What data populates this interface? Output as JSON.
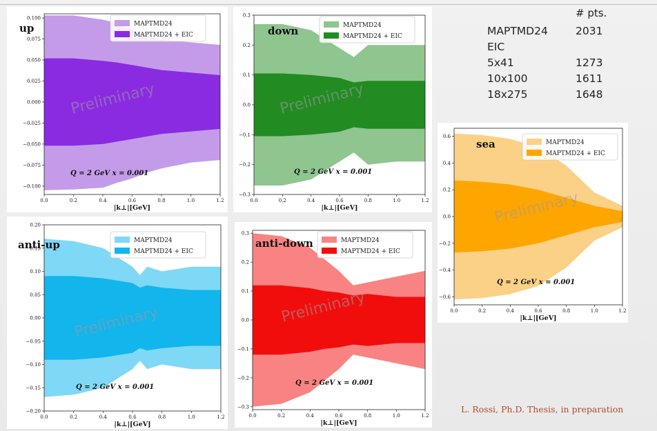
{
  "stats": {
    "header": "# pts.",
    "rows": [
      {
        "label": "MAPTMD24",
        "value": "2031"
      },
      {
        "label": "EIC",
        "value": ""
      },
      {
        "label": "5x41",
        "value": "1273"
      },
      {
        "label": "10x100",
        "value": "1611"
      },
      {
        "label": "18x275",
        "value": "1648"
      }
    ]
  },
  "credit": "L. Rossi, Ph.D. Thesis, in preparation",
  "chart_data": [
    {
      "type": "area",
      "title": "up",
      "xlabel": "|k⊥|[GeV]",
      "xlim": [
        0,
        1.2
      ],
      "ylim": [
        -0.11,
        0.105
      ],
      "xticks": [
        "0.0",
        "0.2",
        "0.4",
        "0.6",
        "0.8",
        "1.0",
        "1.2"
      ],
      "yticks": [
        "−0.100",
        "−0.075",
        "−0.050",
        "−0.025",
        "0.000",
        "0.025",
        "0.050",
        "0.075",
        "0.100"
      ],
      "legend": [
        "MAPTMD24",
        "MAPTMD24 + EIC"
      ],
      "colors": [
        "#c49be8",
        "#8a2be2"
      ],
      "note": "Q = 2 GeV   x = 0.001",
      "watermark": "Preliminary",
      "x": [
        0.0,
        0.2,
        0.4,
        0.5,
        0.6,
        0.7,
        0.8,
        1.0,
        1.2
      ],
      "series": [
        {
          "name": "MAPTMD24",
          "upper": [
            0.103,
            0.103,
            0.098,
            0.094,
            0.086,
            0.079,
            0.074,
            0.071,
            0.068
          ],
          "lower": [
            -0.105,
            -0.104,
            -0.102,
            -0.096,
            -0.091,
            -0.084,
            -0.079,
            -0.072,
            -0.069
          ]
        },
        {
          "name": "MAPTMD24 + EIC",
          "upper": [
            0.052,
            0.052,
            0.049,
            0.047,
            0.044,
            0.041,
            0.038,
            0.035,
            0.032
          ],
          "lower": [
            -0.052,
            -0.052,
            -0.05,
            -0.047,
            -0.044,
            -0.041,
            -0.038,
            -0.035,
            -0.032
          ]
        }
      ]
    },
    {
      "type": "area",
      "title": "down",
      "xlabel": "|k⊥|[GeV]",
      "xlim": [
        0,
        1.2
      ],
      "ylim": [
        -0.3,
        0.3
      ],
      "xticks": [
        "0.0",
        "0.2",
        "0.4",
        "0.6",
        "0.8",
        "1.0",
        "1.2"
      ],
      "yticks": [
        "−0.3",
        "−0.2",
        "−0.1",
        "0.0",
        "0.1",
        "0.2",
        "0.3"
      ],
      "legend": [
        "MAPTMD24",
        "MAPTMD24 + EIC"
      ],
      "colors": [
        "#8fc58f",
        "#228b22"
      ],
      "note": "Q = 2 GeV   x = 0.001",
      "watermark": "Preliminary",
      "x": [
        0.0,
        0.2,
        0.4,
        0.5,
        0.6,
        0.7,
        0.8,
        1.0,
        1.2
      ],
      "series": [
        {
          "name": "MAPTMD24",
          "upper": [
            0.27,
            0.27,
            0.25,
            0.22,
            0.19,
            0.16,
            0.2,
            0.2,
            0.2
          ],
          "lower": [
            -0.27,
            -0.27,
            -0.25,
            -0.22,
            -0.19,
            -0.16,
            -0.2,
            -0.19,
            -0.19
          ]
        },
        {
          "name": "MAPTMD24 + EIC",
          "upper": [
            0.105,
            0.105,
            0.1,
            0.095,
            0.09,
            0.075,
            0.08,
            0.08,
            0.08
          ],
          "lower": [
            -0.105,
            -0.105,
            -0.1,
            -0.095,
            -0.09,
            -0.075,
            -0.08,
            -0.08,
            -0.08
          ]
        }
      ]
    },
    {
      "type": "area",
      "title": "anti-up",
      "xlabel": "|k⊥|[GeV]",
      "xlim": [
        0,
        1.2
      ],
      "ylim": [
        -0.2,
        0.2
      ],
      "xticks": [
        "0.0",
        "0.2",
        "0.4",
        "0.6",
        "0.8",
        "1.0",
        "1.2"
      ],
      "yticks": [
        "−0.20",
        "−0.15",
        "−0.10",
        "−0.05",
        "0.00",
        "0.05",
        "0.10",
        "0.15",
        "0.20"
      ],
      "legend": [
        "MAPTMD24",
        "MAPTMD24 + EIC"
      ],
      "colors": [
        "#7fd8f5",
        "#12b5ec"
      ],
      "note": "Q = 2 GeV   x = 0.001",
      "watermark": "Preliminary",
      "x": [
        0.0,
        0.2,
        0.4,
        0.5,
        0.6,
        0.65,
        0.7,
        0.8,
        1.0,
        1.2
      ],
      "series": [
        {
          "name": "MAPTMD24",
          "upper": [
            0.17,
            0.165,
            0.15,
            0.13,
            0.11,
            0.092,
            0.11,
            0.1,
            0.11,
            0.11
          ],
          "lower": [
            -0.17,
            -0.165,
            -0.15,
            -0.13,
            -0.11,
            -0.092,
            -0.11,
            -0.1,
            -0.11,
            -0.11
          ]
        },
        {
          "name": "MAPTMD24 + EIC",
          "upper": [
            0.09,
            0.09,
            0.085,
            0.08,
            0.075,
            0.065,
            0.07,
            0.065,
            0.06,
            0.06
          ],
          "lower": [
            -0.09,
            -0.09,
            -0.085,
            -0.08,
            -0.075,
            -0.065,
            -0.07,
            -0.065,
            -0.06,
            -0.06
          ]
        }
      ]
    },
    {
      "type": "area",
      "title": "anti-down",
      "xlabel": "|k⊥|[GeV]",
      "xlim": [
        0,
        1.2
      ],
      "ylim": [
        -0.31,
        0.31
      ],
      "xticks": [
        "0.0",
        "0.2",
        "0.4",
        "0.6",
        "0.8",
        "1.0",
        "1.2"
      ],
      "yticks": [
        "−0.3",
        "−0.2",
        "−0.1",
        "0.0",
        "0.1",
        "0.2",
        "0.3"
      ],
      "legend": [
        "MAPTMD24",
        "MAPTMD24 + EIC"
      ],
      "colors": [
        "#f98383",
        "#f20d0d"
      ],
      "note": "Q = 2 GeV   x = 0.001",
      "watermark": "Preliminary",
      "x": [
        0.0,
        0.2,
        0.4,
        0.5,
        0.6,
        0.7,
        0.8,
        1.0,
        1.2
      ],
      "series": [
        {
          "name": "MAPTMD24",
          "upper": [
            0.3,
            0.29,
            0.25,
            0.21,
            0.17,
            0.12,
            0.13,
            0.15,
            0.17
          ],
          "lower": [
            -0.3,
            -0.29,
            -0.25,
            -0.21,
            -0.17,
            -0.12,
            -0.13,
            -0.15,
            -0.17
          ]
        },
        {
          "name": "MAPTMD24 + EIC",
          "upper": [
            0.12,
            0.12,
            0.11,
            0.1,
            0.095,
            0.085,
            0.09,
            0.08,
            0.08
          ],
          "lower": [
            -0.12,
            -0.12,
            -0.11,
            -0.1,
            -0.095,
            -0.085,
            -0.09,
            -0.08,
            -0.08
          ]
        }
      ]
    },
    {
      "type": "area",
      "title": "sea",
      "xlabel": "|k⊥|[GeV]",
      "xlim": [
        0,
        1.2
      ],
      "ylim": [
        -0.66,
        0.66
      ],
      "xticks": [
        "0.0",
        "0.2",
        "0.4",
        "0.6",
        "0.8",
        "1.0",
        "1.2"
      ],
      "yticks": [
        "−0.6",
        "−0.4",
        "−0.2",
        "0.0",
        "0.2",
        "0.4",
        "0.6"
      ],
      "legend": [
        "MAPTMD24",
        "MAPTMD24 + EIC"
      ],
      "colors": [
        "#fbd087",
        "#ffa500"
      ],
      "note": "Q = 2 GeV   x = 0.001",
      "watermark": "Preliminary",
      "x": [
        0.0,
        0.2,
        0.4,
        0.6,
        0.8,
        1.0,
        1.2
      ],
      "series": [
        {
          "name": "MAPTMD24",
          "upper": [
            0.62,
            0.61,
            0.58,
            0.52,
            0.38,
            0.18,
            0.08
          ],
          "lower": [
            -0.62,
            -0.61,
            -0.58,
            -0.52,
            -0.38,
            -0.18,
            -0.08
          ]
        },
        {
          "name": "MAPTMD24 + EIC",
          "upper": [
            0.27,
            0.26,
            0.24,
            0.2,
            0.14,
            0.08,
            0.04
          ],
          "lower": [
            -0.27,
            -0.26,
            -0.24,
            -0.2,
            -0.14,
            -0.08,
            -0.04
          ]
        }
      ]
    }
  ]
}
